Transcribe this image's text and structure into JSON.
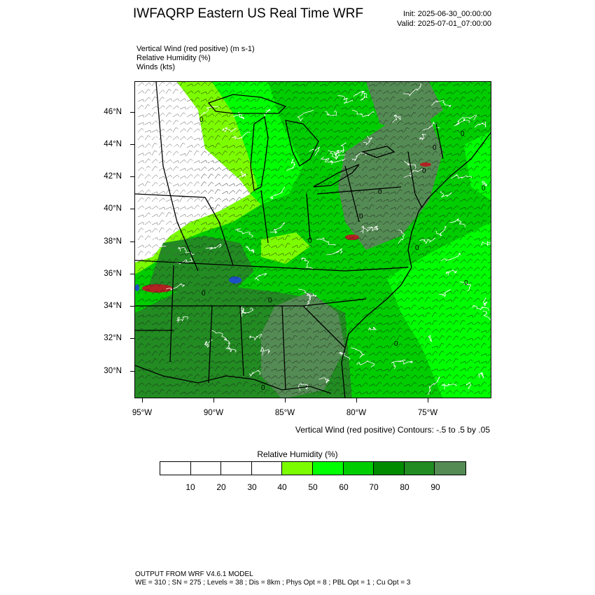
{
  "title": "IWFAQRP Eastern US Real Time WRF",
  "init_time": "Init: 2025-06-30_00:00:00",
  "valid_time": "Valid: 2025-07-01_07:00:00",
  "fields": {
    "vertical_wind": "Vertical Wind (red positive)   (m s-1)",
    "relative_humidity": "Relative Humidity   (%)",
    "winds": "Winds   (kts)"
  },
  "latitude_labels": [
    "46°N",
    "44°N",
    "42°N",
    "40°N",
    "38°N",
    "36°N",
    "34°N",
    "32°N",
    "30°N"
  ],
  "longitude_labels": [
    "95°W",
    "90°W",
    "85°W",
    "80°W",
    "75°W"
  ],
  "contour_note": "Vertical Wind (red positive) Contours: -.5 to .5 by .05",
  "colorbar": {
    "title": "Relative Humidity  (%)",
    "labels": [
      "10",
      "20",
      "30",
      "40",
      "50",
      "60",
      "70",
      "80",
      "90"
    ],
    "colors": [
      "#ffffff",
      "#ffffff",
      "#ffffff",
      "#ffffff",
      "#7cfc00",
      "#00ff00",
      "#00cd00",
      "#008b00",
      "#228b22",
      "#548b54"
    ]
  },
  "map": {
    "contour_label": "0",
    "colors": {
      "dry": "#ffffff",
      "rh40": "#7cfc00",
      "rh50": "#00ff00",
      "rh60": "#00cd00",
      "rh70": "#008b00",
      "rh80": "#228b22",
      "rh90": "#548b54",
      "positive_vertical_wind": "#b22222",
      "negative_vertical_wind": "#1e50c8"
    }
  },
  "footer": {
    "model": "OUTPUT FROM WRF V4.6.1 MODEL",
    "settings": "WE = 310 ; SN = 275 ; Levels = 38 ; Dis = 8km ; Phys Opt = 8 ; PBL Opt = 1 ; Cu Opt = 3"
  }
}
